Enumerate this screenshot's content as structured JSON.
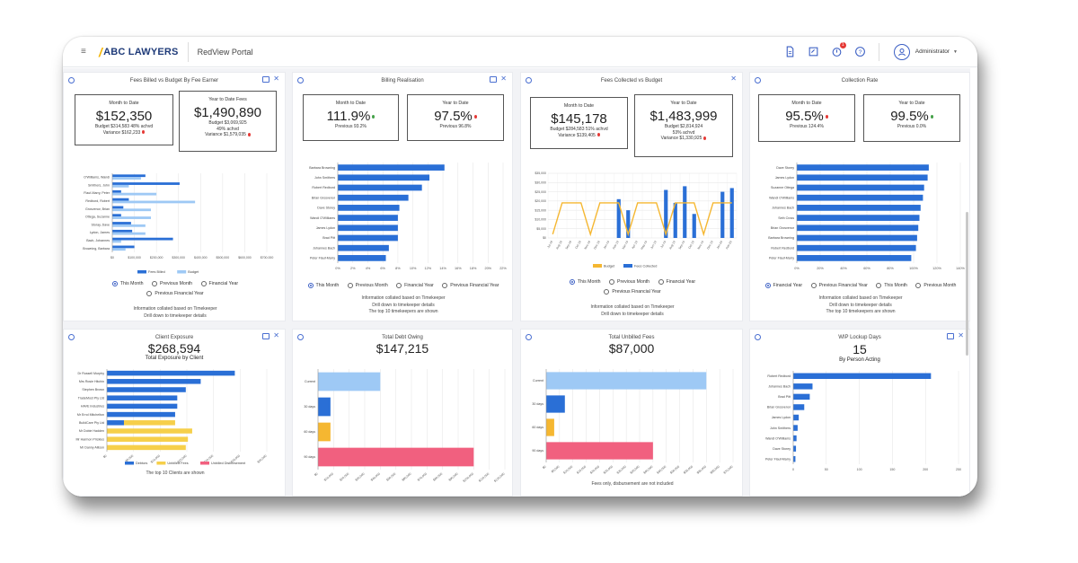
{
  "app": {
    "logo": "ABC LAWYERS",
    "portal": "RedView Portal",
    "user": "Administrator",
    "notif_count": "1"
  },
  "colors": {
    "blue": "#2a6fd6",
    "lightblue": "#9ec9f5",
    "gold": "#f5b731",
    "yellow": "#f6cf4a",
    "pink": "#f1607f",
    "accent": "#3b5fc4"
  },
  "cards": [
    {
      "title": "Fees Billed vs Budget By Fee Earner",
      "kpis": [
        {
          "label": "Month to Date",
          "value": "$152,350",
          "sub": [
            "Budget $314,583   48% achvd",
            "Variance $162,233"
          ]
        },
        {
          "label": "Year to Date Fees",
          "value": "$1,490,890",
          "sub": [
            "Budget $3,069,925",
            "49% achvd",
            "Variance $1,579,035"
          ]
        }
      ],
      "radios": [
        "This Month",
        "Previous Month",
        "Financial Year",
        "Previous Financial Year"
      ],
      "notes": [
        "Information collated based on Timekeeper",
        "Drill down to timekeeper details"
      ]
    },
    {
      "title": "Billing Realisation",
      "kpis": [
        {
          "label": "Month to Date",
          "value": "111.9%",
          "sub": [
            "Previous 93.2%"
          ]
        },
        {
          "label": "Year to Date",
          "value": "97.5%",
          "sub": [
            "Previous 96.8%"
          ]
        }
      ],
      "radios": [
        "This Month",
        "Previous Month",
        "Financial Year",
        "Previous Financial Year"
      ],
      "notes": [
        "Information collated based on Timekeeper",
        "Drill down to timekeeper details",
        "The top 10 timekeepers are shown"
      ]
    },
    {
      "title": "Fees Collected vs Budget",
      "kpis": [
        {
          "label": "Month to Date",
          "value": "$145,178",
          "sub": [
            "Budget $284,583   51% achvd",
            "Variance $139,405"
          ]
        },
        {
          "label": "Year to Date",
          "value": "$1,483,999",
          "sub": [
            "Budget $2,814,924",
            "53% achvd",
            "Variance $1,330,925"
          ]
        }
      ],
      "radios": [
        "This Month",
        "Previous Month",
        "Financial Year",
        "Previous Financial Year"
      ],
      "notes": [
        "Information collated based on Timekeeper",
        "Drill down to timekeeper details"
      ]
    },
    {
      "title": "Collection Rate",
      "kpis": [
        {
          "label": "Month to Date",
          "value": "95.5%",
          "sub": [
            "Previous 124.4%"
          ]
        },
        {
          "label": "Year to Date",
          "value": "99.5%",
          "sub": [
            "Previous 0.0%"
          ]
        }
      ],
      "radios": [
        "Financial Year",
        "Previous Financial Year",
        "This Month",
        "Previous Month"
      ],
      "notes": [
        "Information collated based on Timekeeper",
        "Drill down to timekeeper details",
        "The top 10 timekeepers are shown"
      ]
    },
    {
      "title": "Client Exposure",
      "big": "$268,594",
      "subtitle": "Total Exposure by Client",
      "notes": [
        "The top 10 Clients are shown"
      ]
    },
    {
      "title": "Total Debt Owing",
      "big": "$147,215"
    },
    {
      "title": "Total Unbilled Fees",
      "big": "$87,000",
      "notes": [
        "Fees only, disbursement are not included"
      ]
    },
    {
      "title": "WIP Lockup Days",
      "big": "15",
      "subtitle": "By Person Acting"
    }
  ],
  "chart_data": [
    {
      "type": "bar",
      "categories": [
        "O'Williams, Wandi",
        "Smithers, John",
        "Flauf-Marry, Peter",
        "Redbord, Robert",
        "Grosvenor, Brian",
        "Ottega, Suzanne",
        "Storay, Dave",
        "Lydon, James",
        "Bach, Johannes",
        "Browning, Barbara"
      ],
      "series": [
        {
          "name": "Fees Billed",
          "values": [
            30000,
            61000,
            8000,
            15000,
            10000,
            8000,
            17000,
            18000,
            55000,
            20000
          ]
        },
        {
          "name": "Budget",
          "values": [
            26000,
            15000,
            40000,
            75000,
            35000,
            35000,
            30000,
            30000,
            8000,
            12000
          ]
        }
      ],
      "xticks": [
        "$0",
        "$100,000",
        "$200,000",
        "$300,000",
        "$400,000",
        "$500,000",
        "$600,000",
        "$700,000"
      ],
      "xlim": [
        0,
        140000
      ]
    },
    {
      "type": "bar",
      "categories": [
        "Barbara Browning",
        "John Smithers",
        "Robert Redbord",
        "Brian Grosvenor",
        "Dave Storey",
        "Wandi O'Williams",
        "James Lydon",
        "Brad Pitt",
        "Johannes Bach",
        "Peter Flauf-Marry"
      ],
      "values": [
        0.71,
        0.61,
        0.56,
        0.47,
        0.41,
        0.4,
        0.4,
        0.4,
        0.34,
        0.32
      ],
      "xticks": [
        "0%",
        "2%",
        "4%",
        "6%",
        "8%",
        "10%",
        "12%",
        "14%",
        "16%",
        "18%",
        "20%",
        "22%"
      ],
      "xlim": [
        0,
        1.1
      ]
    },
    {
      "type": "bar_line",
      "categories": [
        "Jul-18",
        "Aug-18",
        "Sep-18",
        "Oct-18",
        "Nov-18",
        "Dec-18",
        "Jan-19",
        "Feb-19",
        "Mar-19",
        "Apr-19",
        "May-19",
        "Jun-19",
        "Jul-19",
        "Aug-19",
        "Sep-19",
        "Oct-19",
        "Nov-19",
        "Dec-19",
        "Jan-20",
        "Feb-20"
      ],
      "series": [
        {
          "name": "Budget",
          "values": [
            2000,
            19000,
            19000,
            19000,
            2000,
            19000,
            19000,
            19000,
            2000,
            19000,
            19000,
            19000,
            2000,
            19000,
            19000,
            19000,
            2000,
            19000,
            19000,
            19000
          ]
        },
        {
          "name": "Fees Collected",
          "values": [
            0,
            0,
            0,
            0,
            0,
            0,
            0,
            21000,
            15000,
            0,
            0,
            0,
            26000,
            19000,
            28000,
            13000,
            0,
            0,
            25000,
            27000
          ]
        }
      ],
      "yticks": [
        "$0",
        "$5,000",
        "$10,000",
        "$15,000",
        "$20,000",
        "$25,000",
        "$30,000",
        "$35,000"
      ],
      "ylim": [
        0,
        35000
      ]
    },
    {
      "type": "bar",
      "categories": [
        "Dave Storey",
        "James Lydon",
        "Suzanne Ottega",
        "Wandi O'Williams",
        "Johannes Bach",
        "Seth Cross",
        "Brian Grosvenor",
        "Barbara Browning",
        "Robert Redbord",
        "Peter Flauf-Marry"
      ],
      "values": [
        1.13,
        1.12,
        1.09,
        1.08,
        1.06,
        1.05,
        1.04,
        1.03,
        1.02,
        0.98
      ],
      "xticks": [
        "0%",
        "20%",
        "40%",
        "60%",
        "80%",
        "100%",
        "120%",
        "140%"
      ],
      "xlim": [
        0,
        1.4
      ]
    },
    {
      "type": "bar",
      "categories": [
        "Dr Russell Murphy",
        "Mrs Rosie Hitchin",
        "Stephen Brown",
        "TradeMost Pty Ltd",
        "HAVE Industries",
        "Mr Errol Mitchelton",
        "BuildCare Pty Ltd",
        "Mr Dobie Hadden",
        "Mr Harmon Prickles",
        "Mr Danny Allison"
      ],
      "series": [
        {
          "name": "Debtors",
          "values": [
            60000,
            44000,
            37000,
            33000,
            33000,
            32000,
            8000,
            0,
            0,
            0
          ]
        },
        {
          "name": "Unbilled Fees",
          "values": [
            0,
            0,
            0,
            0,
            0,
            0,
            24000,
            40000,
            38000,
            37000
          ]
        },
        {
          "name": "Unbilled Disbursement",
          "values": [
            0,
            0,
            0,
            0,
            0,
            0,
            0,
            0,
            0,
            0
          ]
        }
      ],
      "xticks": [
        "$0",
        "$5,000",
        "$10,000",
        "$15,000",
        "$20,000",
        "$25,000",
        "$30,000"
      ],
      "xlim": [
        0,
        75000
      ]
    },
    {
      "type": "bar",
      "categories": [
        "Current",
        "30 days",
        "60 days",
        "90 days"
      ],
      "values": [
        40000,
        8000,
        8000,
        100000
      ],
      "xticks": [
        "$0",
        "$10,000",
        "$20,000",
        "$30,000",
        "$40,000",
        "$50,000",
        "$60,000",
        "$70,000",
        "$80,000",
        "$90,000",
        "$100,000",
        "$110,000",
        "$120,000"
      ],
      "xlim": [
        0,
        120000
      ]
    },
    {
      "type": "bar",
      "categories": [
        "Current",
        "30 days",
        "60 days",
        "90 days"
      ],
      "values": [
        60000,
        7000,
        3000,
        40000
      ],
      "xticks": [
        "$0",
        "$5,000",
        "$10,000",
        "$15,000",
        "$20,000",
        "$25,000",
        "$30,000",
        "$35,000",
        "$40,000",
        "$45,000",
        "$50,000",
        "$55,000",
        "$60,000",
        "$65,000",
        "$70,000"
      ],
      "xlim": [
        0,
        70000
      ]
    },
    {
      "type": "bar",
      "categories": [
        "Robert Redbord",
        "Johannes Bach",
        "Brad Pitt",
        "Brian Grosvenor",
        "James Lydon",
        "John Smithers",
        "Wandi O'Williams",
        "Dave Storey",
        "Peter Flauf-Marry"
      ],
      "values": [
        250,
        35,
        30,
        20,
        10,
        8,
        6,
        5,
        4
      ],
      "xticks": [
        "0",
        "50",
        "100",
        "150",
        "200",
        "250"
      ],
      "xlim": [
        0,
        300
      ]
    }
  ]
}
